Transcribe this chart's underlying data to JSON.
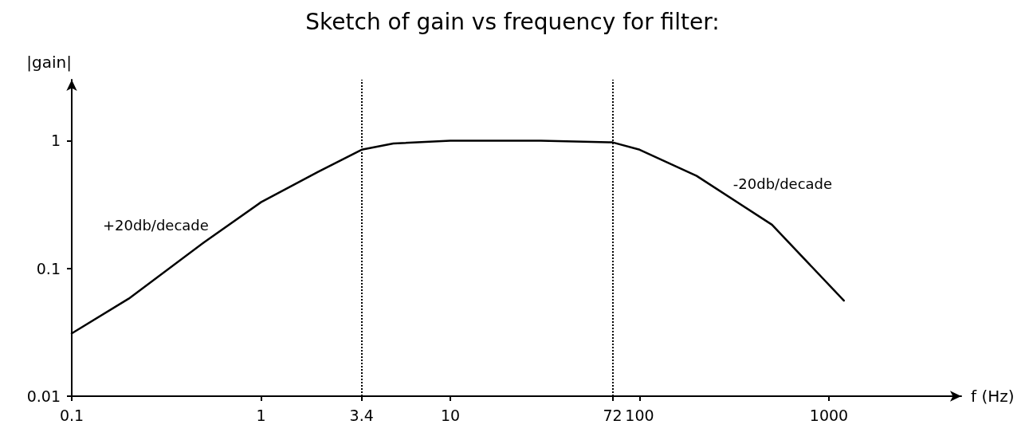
{
  "chart_data": {
    "type": "line",
    "title": "Sketch of gain vs frequency for filter:",
    "xlabel": "f (Hz)",
    "ylabel": "|gain|",
    "log": "xy",
    "xlim": [
      0.1,
      5000
    ],
    "ylim": [
      0.01,
      3
    ],
    "xticks": [
      0.1,
      1,
      3.4,
      10,
      72,
      100,
      1000
    ],
    "yticks": [
      0.01,
      0.1,
      1
    ],
    "series": [
      {
        "color": "#000000",
        "x": [
          0.1,
          0.2,
          0.5,
          1,
          2,
          3.4,
          5,
          10,
          30,
          72,
          100,
          200,
          500,
          1200
        ],
        "values": [
          0.031,
          0.058,
          0.16,
          0.33,
          0.57,
          0.85,
          0.95,
          1,
          1,
          0.97,
          0.85,
          0.53,
          0.22,
          0.056
        ]
      }
    ],
    "ref_lines": [
      {
        "axis": "x",
        "value": 3.4,
        "color": "#000000",
        "line_style": "dotted"
      },
      {
        "axis": "x",
        "value": 72,
        "color": "#000000",
        "line_style": "dotted"
      }
    ],
    "annotations": [
      {
        "text": "+20db/decade",
        "x": 0.55,
        "y": 0.18
      },
      {
        "text": "-20db/decade",
        "x": 300,
        "y": 0.38
      }
    ],
    "grid": false,
    "marker": "none",
    "line_style": "solid"
  }
}
